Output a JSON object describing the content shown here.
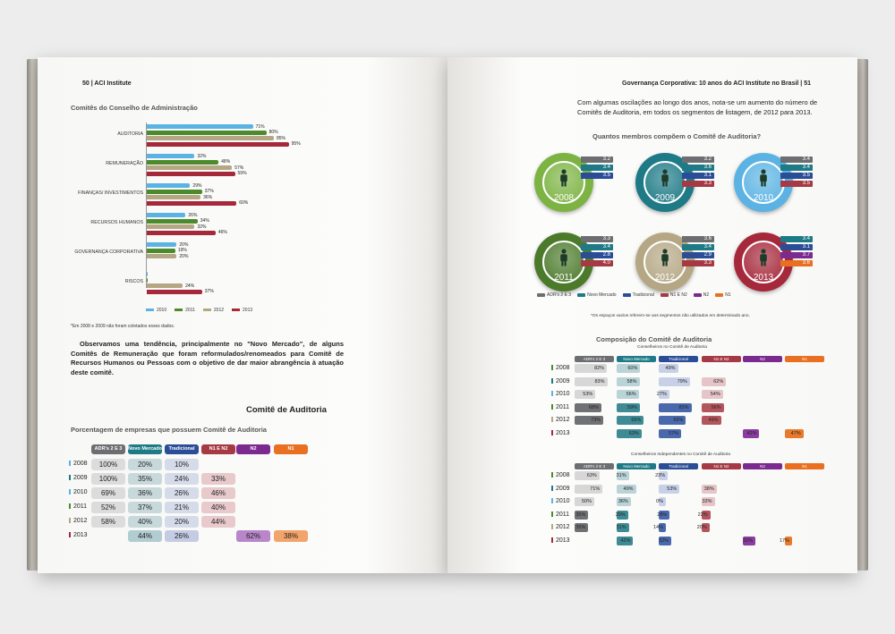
{
  "colors": {
    "c2010": "#5bb3e3",
    "c2011": "#4c8a2b",
    "c2012": "#b5a784",
    "c2013": "#a6283b",
    "adrs": "#6d6e71",
    "novo": "#1d7a86",
    "trad": "#2b4d98",
    "n1n2": "#a53a44",
    "n2": "#7b2a8f",
    "n1": "#e87020"
  },
  "left": {
    "header": "50 | ACI Institute",
    "chart_title": "Comitês do Conselho de Administração",
    "footnote": "*Em 2008 e 2009 não foram coletados esses dados.",
    "paragraph": "Observamos uma tendência, principalmente no \"Novo Mercado\", de alguns Comitês de Remuneração que foram reformulados/renomeados para Comitê de Recursos Humanos ou Pessoas com o objetivo de dar maior abrangência à atuação deste comitê.",
    "section_heading": "Comitê de Auditoria",
    "table_title": "Porcentagem de empresas que possuem Comitê de Auditoria",
    "table": {
      "headers": [
        "ADR's 2 E 3",
        "Novo Mercado",
        "Tradicional",
        "N1 E N2",
        "N2",
        "N1"
      ],
      "rows": [
        {
          "year": "2008",
          "cells": [
            "100%",
            "20%",
            "10%",
            "",
            "",
            ""
          ]
        },
        {
          "year": "2009",
          "cells": [
            "100%",
            "35%",
            "24%",
            "33%",
            "",
            ""
          ]
        },
        {
          "year": "2010",
          "cells": [
            "69%",
            "36%",
            "26%",
            "46%",
            "",
            ""
          ]
        },
        {
          "year": "2011",
          "cells": [
            "52%",
            "37%",
            "21%",
            "40%",
            "",
            ""
          ]
        },
        {
          "year": "2012",
          "cells": [
            "58%",
            "40%",
            "20%",
            "44%",
            "",
            ""
          ]
        },
        {
          "year": "2013",
          "cells": [
            "",
            "44%",
            "26%",
            "",
            "62%",
            "38%"
          ]
        }
      ]
    }
  },
  "chart_data": {
    "type": "bar",
    "orientation": "horizontal",
    "title": "Comitês do Conselho de Administração",
    "categories": [
      "AUDITORIA",
      "REMUNERAÇÃO",
      "FINANÇAS/ INVESTIMENTOS",
      "RECURSOS HUMANOS",
      "GOVERNANÇA CORPORATIVA",
      "RISCOS"
    ],
    "series": [
      {
        "name": "2010",
        "values": [
          71,
          32,
          29,
          26,
          20,
          null
        ]
      },
      {
        "name": "2011",
        "values": [
          80,
          48,
          37,
          34,
          19,
          null
        ]
      },
      {
        "name": "2012",
        "values": [
          85,
          57,
          36,
          32,
          20,
          24
        ]
      },
      {
        "name": "2013",
        "values": [
          95,
          59,
          60,
          46,
          null,
          37
        ]
      }
    ],
    "value_labels": [
      [
        "71%",
        "32%",
        "29%",
        "26%",
        "20%",
        ""
      ],
      [
        "80%",
        "48%",
        "37%",
        "34%",
        "19%",
        ""
      ],
      [
        "85%",
        "57%",
        "36%",
        "32%",
        "20%",
        "24%"
      ],
      [
        "95%",
        "59%",
        "60%",
        "46%",
        "",
        "37%"
      ]
    ],
    "legend": [
      "2010",
      "2011",
      "2012",
      "2013"
    ],
    "legend_position": "bottom",
    "xlim": [
      0,
      100
    ]
  },
  "right": {
    "header": "Governança Corporativa: 10 anos do ACI Institute no Brasil | 51",
    "intro": "Com algumas oscilações ao longo dos anos, nota-se um aumento do número de Comitês de Auditoria, em todos os segmentos de listagem, de 2012 para 2013.",
    "members_title": "Quantos membros compõem o Comitê de Auditoria?",
    "rings": [
      {
        "year": "2008",
        "color": "#7cb342",
        "values": [
          "3.2",
          "3.4",
          "3.5",
          ""
        ],
        "vc": [
          "adrs",
          "novo",
          "trad",
          ""
        ]
      },
      {
        "year": "2009",
        "color": "#1d7a86",
        "values": [
          "3.2",
          "3.6",
          "3.1",
          "3.3"
        ],
        "vc": [
          "adrs",
          "novo",
          "trad",
          "n1n2"
        ]
      },
      {
        "year": "2010",
        "color": "#5bb3e3",
        "values": [
          "3.4",
          "3.4",
          "3.5",
          "3.5"
        ],
        "vc": [
          "adrs",
          "novo",
          "trad",
          "n1n2"
        ]
      },
      {
        "year": "2011",
        "color": "#4c7a2b",
        "values": [
          "3.3",
          "3.4",
          "2.8",
          "4.0"
        ],
        "vc": [
          "adrs",
          "novo",
          "trad",
          "n1n2"
        ]
      },
      {
        "year": "2012",
        "color": "#b5a784",
        "values": [
          "3.6",
          "3.4",
          "2.9",
          "3.3"
        ],
        "vc": [
          "adrs",
          "novo",
          "trad",
          "n1n2"
        ]
      },
      {
        "year": "2013",
        "color": "#a6283b",
        "values": [
          "3.4",
          "3.1",
          "3.7",
          "3.6"
        ],
        "vc": [
          "novo",
          "trad",
          "n2",
          "n1"
        ]
      }
    ],
    "ring_legend": [
      "ADR's 2 E 3",
      "Novo Mercado",
      "Tradicional",
      "N1 E N2",
      "N2",
      "N1"
    ],
    "ring_note": "*Os espaços vazios referem-se aos segmentos não utilizados em determinado ano.",
    "comp_title": "Composição do Comitê de Auditoria",
    "t1": {
      "subtitle": "Conselheiros no Comitê de Auditoria",
      "headers": [
        "ADR's 2 E 3",
        "Novo Mercado",
        "Tradicional",
        "N1 E N2",
        "N2",
        "N1"
      ],
      "rows": [
        {
          "year": "2008",
          "cells": [
            "82%",
            "60%",
            "49%",
            "",
            "",
            ""
          ]
        },
        {
          "year": "2009",
          "cells": [
            "83%",
            "58%",
            "79%",
            "62%",
            "",
            ""
          ]
        },
        {
          "year": "2010",
          "cells": [
            "53%",
            "56%",
            "27%",
            "54%",
            "",
            ""
          ]
        },
        {
          "year": "2011",
          "cells": [
            "68%",
            "59%",
            "83%",
            "56%",
            "",
            ""
          ]
        },
        {
          "year": "2012",
          "cells": [
            "73%",
            "69%",
            "69%",
            "49%",
            "",
            ""
          ]
        },
        {
          "year": "2013",
          "cells": [
            "",
            "63%",
            "57%",
            "",
            "42%",
            "47%"
          ]
        }
      ],
      "fills": [
        [
          0.82,
          0.6,
          0.49,
          0,
          0,
          0
        ],
        [
          0.83,
          0.58,
          0.79,
          0.62,
          0,
          0
        ],
        [
          0.53,
          0.56,
          0.27,
          0.54,
          0,
          0
        ],
        [
          0.68,
          0.59,
          0.83,
          0.56,
          0,
          0
        ],
        [
          0.73,
          0.69,
          0.69,
          0.49,
          0,
          0
        ],
        [
          0,
          0.63,
          0.57,
          0,
          0.42,
          0.47
        ]
      ]
    },
    "t2": {
      "subtitle": "Conselheiros Independentes no Comitê de Auditoria",
      "headers": [
        "ADR's 2 E 3",
        "Novo Mercado",
        "Tradicional",
        "N1 E N2",
        "N2",
        "N1"
      ],
      "rows": [
        {
          "year": "2008",
          "cells": [
            "63%",
            "31%",
            "23%",
            "",
            "",
            ""
          ]
        },
        {
          "year": "2009",
          "cells": [
            "71%",
            "49%",
            "53%",
            "38%",
            "",
            ""
          ]
        },
        {
          "year": "2010",
          "cells": [
            "50%",
            "36%",
            "0%",
            "33%",
            "",
            ""
          ]
        },
        {
          "year": "2011",
          "cells": [
            "35%",
            "29%",
            "28%",
            "22%",
            "",
            ""
          ]
        },
        {
          "year": "2012",
          "cells": [
            "35%",
            "31%",
            "14%",
            "20%",
            "",
            ""
          ]
        },
        {
          "year": "2013",
          "cells": [
            "",
            "42%",
            "32%",
            "",
            "32%",
            "17%"
          ]
        }
      ],
      "fills": [
        [
          0.63,
          0.31,
          0.23,
          0,
          0,
          0
        ],
        [
          0.71,
          0.49,
          0.53,
          0.38,
          0,
          0
        ],
        [
          0.5,
          0.36,
          0,
          0.33,
          0,
          0
        ],
        [
          0.35,
          0.29,
          0.28,
          0.22,
          0,
          0
        ],
        [
          0.35,
          0.31,
          0.14,
          0.2,
          0,
          0
        ],
        [
          0,
          0.42,
          0.32,
          0,
          0.32,
          0.17
        ]
      ]
    }
  }
}
